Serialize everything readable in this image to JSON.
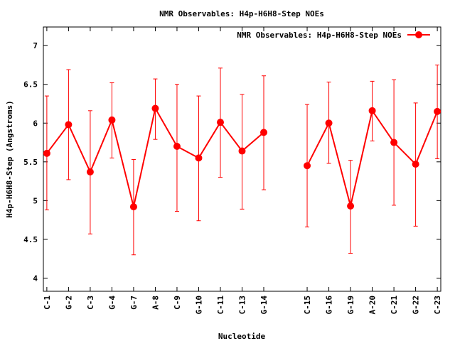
{
  "chart_data": {
    "type": "line",
    "title": "NMR Observables: H4p-H6H8-Step NOEs",
    "xlabel": "Nucleotide",
    "ylabel": "H4p-H6H8-Step (Angstroms)",
    "ylim": [
      3.83,
      7.24
    ],
    "yticks": [
      4,
      4.5,
      5,
      5.5,
      6,
      6.5,
      7
    ],
    "ytick_labels": [
      "4",
      "4.5",
      "5",
      "5.5",
      "6",
      "6.5",
      "7"
    ],
    "xlim": [
      -0.16,
      18.16
    ],
    "legend": {
      "label": "NMR Observables: H4p-H6H8-Step NOEs",
      "placement": "top-right"
    },
    "color": "#ff0000",
    "points": [
      {
        "label": "C-1",
        "x": 0,
        "y": 5.61,
        "ymax": 6.35,
        "ymin": 4.88,
        "segment": 0
      },
      {
        "label": "G-2",
        "x": 1,
        "y": 5.98,
        "ymax": 6.69,
        "ymin": 5.27,
        "segment": 0
      },
      {
        "label": "C-3",
        "x": 2,
        "y": 5.37,
        "ymax": 6.16,
        "ymin": 4.57,
        "segment": 0
      },
      {
        "label": "G-4",
        "x": 3,
        "y": 6.04,
        "ymax": 6.52,
        "ymin": 5.55,
        "segment": 0
      },
      {
        "label": "G-7",
        "x": 4,
        "y": 4.92,
        "ymax": 5.53,
        "ymin": 4.3,
        "segment": 0
      },
      {
        "label": "A-8",
        "x": 5,
        "y": 6.19,
        "ymax": 6.57,
        "ymin": 5.79,
        "segment": 0
      },
      {
        "label": "C-9",
        "x": 6,
        "y": 5.7,
        "ymax": 6.5,
        "ymin": 4.86,
        "segment": 0
      },
      {
        "label": "G-10",
        "x": 7,
        "y": 5.55,
        "ymax": 6.35,
        "ymin": 4.74,
        "segment": 0
      },
      {
        "label": "C-11",
        "x": 8,
        "y": 6.01,
        "ymax": 6.71,
        "ymin": 5.3,
        "segment": 0
      },
      {
        "label": "C-13",
        "x": 9,
        "y": 5.64,
        "ymax": 6.37,
        "ymin": 4.89,
        "segment": 0
      },
      {
        "label": "G-14",
        "x": 10,
        "y": 5.88,
        "ymax": 6.61,
        "ymin": 5.14,
        "segment": 0
      },
      {
        "label": "C-15",
        "x": 12,
        "y": 5.45,
        "ymax": 6.24,
        "ymin": 4.66,
        "segment": 1
      },
      {
        "label": "G-16",
        "x": 13,
        "y": 6.0,
        "ymax": 6.53,
        "ymin": 5.48,
        "segment": 1
      },
      {
        "label": "G-19",
        "x": 14,
        "y": 4.93,
        "ymax": 5.52,
        "ymin": 4.32,
        "segment": 1
      },
      {
        "label": "A-20",
        "x": 15,
        "y": 6.16,
        "ymax": 6.54,
        "ymin": 5.77,
        "segment": 1
      },
      {
        "label": "C-21",
        "x": 16,
        "y": 5.75,
        "ymax": 6.56,
        "ymin": 4.94,
        "segment": 1
      },
      {
        "label": "G-22",
        "x": 17,
        "y": 5.47,
        "ymax": 6.26,
        "ymin": 4.67,
        "segment": 1
      },
      {
        "label": "C-23",
        "x": 18,
        "y": 6.15,
        "ymax": 6.75,
        "ymin": 5.54,
        "segment": 1
      }
    ]
  }
}
